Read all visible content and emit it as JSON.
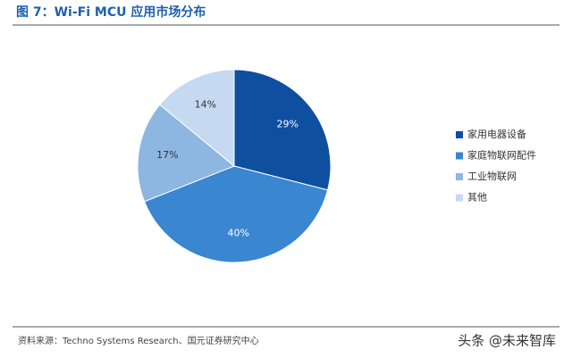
{
  "chart_data": {
    "type": "pie",
    "title": "图 7：Wi-Fi MCU 应用市场分布",
    "categories": [
      "家用电器设备",
      "家庭物联网配件",
      "工业物联网",
      "其他"
    ],
    "values": [
      29,
      40,
      17,
      14
    ],
    "value_labels": [
      "29%",
      "40%",
      "17%",
      "14%"
    ],
    "colors": [
      "#0f4fa0",
      "#3a86d0",
      "#8db6e0",
      "#c5daf0"
    ],
    "legend": "right",
    "source": "资料来源：Techno Systems Research、国元证券研究中心",
    "watermark": "头条 @未来智库"
  }
}
